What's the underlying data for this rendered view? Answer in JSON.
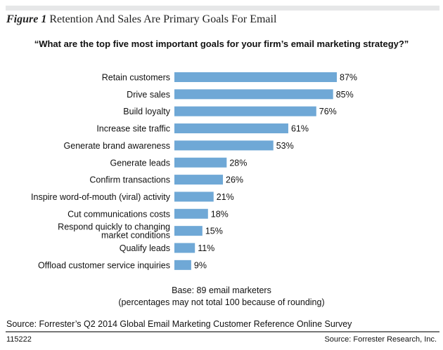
{
  "figure": {
    "label": "Figure 1",
    "title": "Retention And Sales Are Primary Goals For Email"
  },
  "question": "“What are the top five most important goals for your firm’s email marketing strategy?”",
  "chart_data": {
    "type": "bar",
    "orientation": "horizontal",
    "categories": [
      "Retain customers",
      "Drive sales",
      "Build loyalty",
      "Increase site traffic",
      "Generate brand awareness",
      "Generate leads",
      "Confirm transactions",
      "Inspire word-of-mouth (viral) activity",
      "Cut communications costs",
      "Respond quickly to changing market conditions",
      "Qualify leads",
      "Offload customer service inquiries"
    ],
    "category_lines": [
      [
        "Retain customers"
      ],
      [
        "Drive sales"
      ],
      [
        "Build loyalty"
      ],
      [
        "Increase site traffic"
      ],
      [
        "Generate brand awareness"
      ],
      [
        "Generate leads"
      ],
      [
        "Confirm transactions"
      ],
      [
        "Inspire word-of-mouth (viral) activity"
      ],
      [
        "Cut communications costs"
      ],
      [
        "Respond quickly to changing",
        "market conditions"
      ],
      [
        "Qualify leads"
      ],
      [
        "Offload customer service inquiries"
      ]
    ],
    "values": [
      87,
      85,
      76,
      61,
      53,
      28,
      26,
      21,
      18,
      15,
      11,
      9
    ],
    "data_labels": [
      "87%",
      "85%",
      "76%",
      "61%",
      "53%",
      "28%",
      "26%",
      "21%",
      "18%",
      "15%",
      "11%",
      "9%"
    ],
    "unit": "%",
    "bar_color": "#6fa8d6",
    "grid": false
  },
  "base_note": "Base: 89 email marketers",
  "rounding_note": "(percentages may not total 100 because of rounding)",
  "source": "Source: Forrester’s Q2 2014 Global Email Marketing Customer Reference Online Survey",
  "footer": {
    "id": "115222",
    "source": "Source: Forrester Research, Inc."
  }
}
